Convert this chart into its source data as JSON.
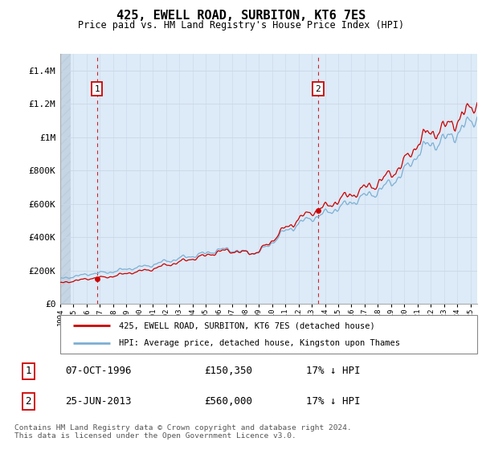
{
  "title": "425, EWELL ROAD, SURBITON, KT6 7ES",
  "subtitle": "Price paid vs. HM Land Registry's House Price Index (HPI)",
  "ylim": [
    0,
    1500000
  ],
  "yticks": [
    0,
    200000,
    400000,
    600000,
    800000,
    1000000,
    1200000,
    1400000
  ],
  "ytick_labels": [
    "£0",
    "£200K",
    "£400K",
    "£600K",
    "£800K",
    "£1M",
    "£1.2M",
    "£1.4M"
  ],
  "xlim_start": 1994.0,
  "xlim_end": 2025.5,
  "sale1_x": 1996.77,
  "sale1_y": 150350,
  "sale2_x": 2013.48,
  "sale2_y": 560000,
  "sale1_label": "1",
  "sale2_label": "2",
  "sale1_date": "07-OCT-1996",
  "sale1_price": "£150,350",
  "sale1_hpi": "17% ↓ HPI",
  "sale2_date": "25-JUN-2013",
  "sale2_price": "£560,000",
  "sale2_hpi": "17% ↓ HPI",
  "legend_line1": "425, EWELL ROAD, SURBITON, KT6 7ES (detached house)",
  "legend_line2": "HPI: Average price, detached house, Kingston upon Thames",
  "footer": "Contains HM Land Registry data © Crown copyright and database right 2024.\nThis data is licensed under the Open Government Licence v3.0.",
  "hpi_color": "#7bafd4",
  "price_color": "#cc0000",
  "vline_color": "#cc0000",
  "grid_color": "#c8d8e8",
  "plot_bg": "#ddeaf7"
}
